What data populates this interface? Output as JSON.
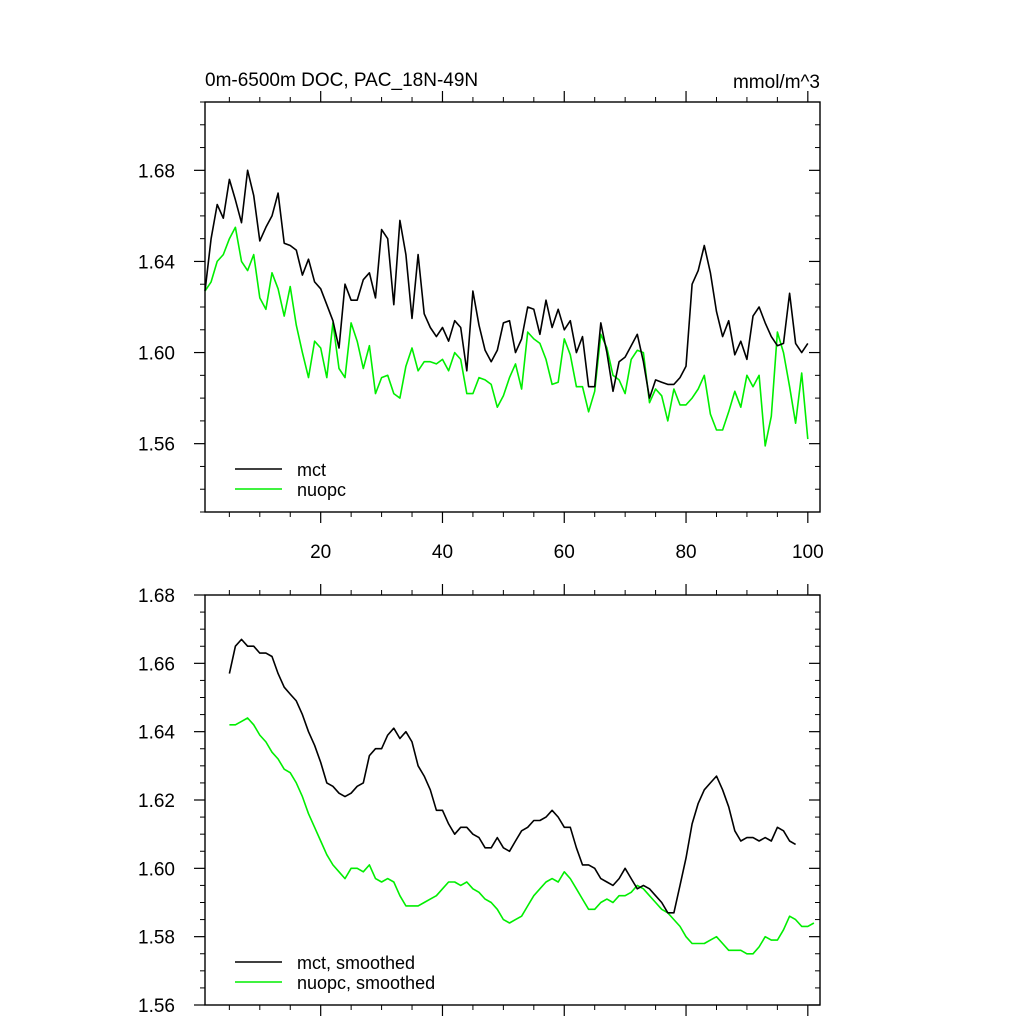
{
  "colors": {
    "mct": "#000000",
    "nuopc": "#00ee00",
    "axis": "#000000",
    "background": "#ffffff"
  },
  "chart_data": [
    {
      "type": "line",
      "title": "0m-6500m DOC, PAC_18N-49N",
      "units": "mmol/m^3",
      "xlim": [
        1,
        102
      ],
      "ylim": [
        1.53,
        1.71
      ],
      "xticks": [
        20,
        40,
        60,
        80,
        100
      ],
      "xtick_labels": [
        "20",
        "40",
        "60",
        "80",
        "100"
      ],
      "yticks": [
        1.56,
        1.6,
        1.64,
        1.68
      ],
      "ytick_labels": [
        "1.56",
        "1.60",
        "1.64",
        "1.68"
      ],
      "legend": "bottom-left",
      "series": [
        {
          "name": "mct",
          "color": "#000000",
          "x_start": 1,
          "values": [
            1.627,
            1.65,
            1.665,
            1.659,
            1.676,
            1.667,
            1.657,
            1.68,
            1.669,
            1.649,
            1.655,
            1.66,
            1.67,
            1.648,
            1.647,
            1.645,
            1.634,
            1.641,
            1.631,
            1.628,
            1.621,
            1.614,
            1.602,
            1.63,
            1.623,
            1.623,
            1.632,
            1.635,
            1.624,
            1.654,
            1.65,
            1.621,
            1.658,
            1.643,
            1.615,
            1.643,
            1.617,
            1.611,
            1.607,
            1.611,
            1.605,
            1.614,
            1.611,
            1.592,
            1.627,
            1.612,
            1.601,
            1.596,
            1.601,
            1.613,
            1.614,
            1.6,
            1.606,
            1.62,
            1.619,
            1.608,
            1.623,
            1.611,
            1.619,
            1.61,
            1.614,
            1.6,
            1.607,
            1.585,
            1.585,
            1.613,
            1.6,
            1.583,
            1.596,
            1.598,
            1.603,
            1.608,
            1.596,
            1.58,
            1.588,
            1.587,
            1.586,
            1.586,
            1.589,
            1.594,
            1.63,
            1.636,
            1.647,
            1.635,
            1.618,
            1.607,
            1.614,
            1.599,
            1.605,
            1.597,
            1.616,
            1.62,
            1.613,
            1.607,
            1.603,
            1.604,
            1.626,
            1.604,
            1.6,
            1.604
          ]
        },
        {
          "name": "nuopc",
          "color": "#00ee00",
          "x_start": 1,
          "values": [
            1.627,
            1.631,
            1.64,
            1.643,
            1.65,
            1.655,
            1.64,
            1.636,
            1.643,
            1.624,
            1.619,
            1.635,
            1.628,
            1.616,
            1.629,
            1.612,
            1.6,
            1.589,
            1.605,
            1.602,
            1.589,
            1.613,
            1.593,
            1.589,
            1.613,
            1.605,
            1.593,
            1.603,
            1.582,
            1.589,
            1.59,
            1.582,
            1.58,
            1.594,
            1.602,
            1.592,
            1.596,
            1.596,
            1.595,
            1.597,
            1.592,
            1.6,
            1.597,
            1.582,
            1.582,
            1.589,
            1.588,
            1.586,
            1.576,
            1.581,
            1.589,
            1.595,
            1.584,
            1.609,
            1.606,
            1.604,
            1.597,
            1.586,
            1.587,
            1.606,
            1.599,
            1.585,
            1.585,
            1.574,
            1.583,
            1.608,
            1.602,
            1.59,
            1.588,
            1.582,
            1.597,
            1.601,
            1.6,
            1.578,
            1.584,
            1.581,
            1.57,
            1.584,
            1.577,
            1.577,
            1.58,
            1.584,
            1.59,
            1.573,
            1.566,
            1.566,
            1.574,
            1.583,
            1.576,
            1.59,
            1.585,
            1.59,
            1.559,
            1.572,
            1.609,
            1.6,
            1.585,
            1.569,
            1.591,
            1.562
          ]
        }
      ]
    },
    {
      "type": "line",
      "title": "",
      "xlim": [
        1,
        102
      ],
      "ylim": [
        1.56,
        1.68
      ],
      "xticks": [
        20,
        40,
        60,
        80,
        100
      ],
      "yticks": [
        1.56,
        1.58,
        1.6,
        1.62,
        1.64,
        1.66,
        1.68
      ],
      "ytick_labels": [
        "1.56",
        "1.58",
        "1.60",
        "1.62",
        "1.64",
        "1.66",
        "1.68"
      ],
      "legend": "bottom-left",
      "series": [
        {
          "name": "mct, smoothed",
          "color": "#000000",
          "x_start": 5,
          "values": [
            1.657,
            1.665,
            1.667,
            1.665,
            1.665,
            1.663,
            1.663,
            1.662,
            1.657,
            1.653,
            1.651,
            1.649,
            1.645,
            1.64,
            1.636,
            1.631,
            1.625,
            1.624,
            1.622,
            1.621,
            1.622,
            1.624,
            1.625,
            1.633,
            1.635,
            1.635,
            1.639,
            1.641,
            1.638,
            1.64,
            1.637,
            1.63,
            1.627,
            1.623,
            1.617,
            1.617,
            1.613,
            1.61,
            1.612,
            1.612,
            1.61,
            1.609,
            1.606,
            1.606,
            1.609,
            1.606,
            1.605,
            1.608,
            1.611,
            1.612,
            1.614,
            1.614,
            1.615,
            1.617,
            1.615,
            1.612,
            1.612,
            1.606,
            1.601,
            1.601,
            1.6,
            1.597,
            1.596,
            1.595,
            1.597,
            1.6,
            1.597,
            1.594,
            1.595,
            1.594,
            1.592,
            1.59,
            1.587,
            1.587,
            1.595,
            1.603,
            1.613,
            1.619,
            1.623,
            1.625,
            1.627,
            1.623,
            1.618,
            1.611,
            1.608,
            1.609,
            1.609,
            1.608,
            1.609,
            1.608,
            1.612,
            1.611,
            1.608,
            1.607
          ]
        },
        {
          "name": "nuopc, smoothed",
          "color": "#00ee00",
          "x_start": 5,
          "values": [
            1.642,
            1.642,
            1.643,
            1.644,
            1.642,
            1.639,
            1.637,
            1.634,
            1.632,
            1.629,
            1.628,
            1.625,
            1.621,
            1.616,
            1.612,
            1.608,
            1.604,
            1.601,
            1.599,
            1.597,
            1.6,
            1.6,
            1.599,
            1.601,
            1.597,
            1.596,
            1.597,
            1.596,
            1.592,
            1.589,
            1.589,
            1.589,
            1.59,
            1.591,
            1.592,
            1.594,
            1.596,
            1.596,
            1.595,
            1.596,
            1.594,
            1.593,
            1.591,
            1.59,
            1.588,
            1.585,
            1.584,
            1.585,
            1.586,
            1.589,
            1.592,
            1.594,
            1.596,
            1.597,
            1.596,
            1.599,
            1.597,
            1.594,
            1.591,
            1.588,
            1.588,
            1.59,
            1.591,
            1.59,
            1.592,
            1.592,
            1.593,
            1.595,
            1.594,
            1.592,
            1.59,
            1.588,
            1.587,
            1.585,
            1.583,
            1.58,
            1.578,
            1.578,
            1.578,
            1.579,
            1.58,
            1.578,
            1.576,
            1.576,
            1.576,
            1.575,
            1.575,
            1.577,
            1.58,
            1.579,
            1.579,
            1.582,
            1.586,
            1.585,
            1.583,
            1.583,
            1.584
          ]
        }
      ]
    }
  ]
}
